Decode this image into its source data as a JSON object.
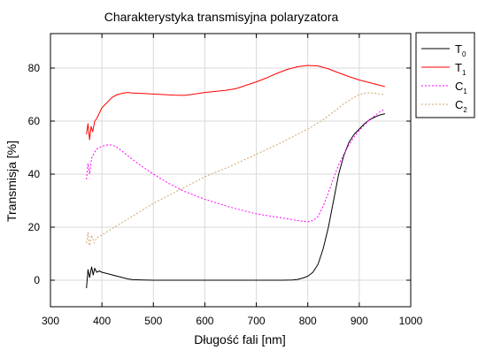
{
  "chart_data": {
    "type": "line",
    "title": "Charakterystyka transmisyjna polaryzatora",
    "xlabel": "Długość fali [nm]",
    "ylabel": "Transmisja [%]",
    "xlim": [
      300,
      1000
    ],
    "ylim": [
      -10,
      93
    ],
    "xticks": [
      300,
      400,
      500,
      600,
      700,
      800,
      900,
      1000
    ],
    "yticks": [
      0,
      20,
      40,
      60,
      80
    ],
    "grid": true,
    "legend_position": "right",
    "series": [
      {
        "name": "T0",
        "name_main": "T",
        "name_sub": "0",
        "color": "#000000",
        "dash": "solid",
        "x": [
          370,
          373,
          376,
          380,
          383,
          386,
          390,
          395,
          400,
          410,
          420,
          430,
          440,
          450,
          460,
          480,
          500,
          550,
          600,
          650,
          700,
          750,
          770,
          780,
          790,
          800,
          810,
          820,
          830,
          840,
          850,
          860,
          870,
          880,
          890,
          900,
          910,
          920,
          930,
          940,
          950
        ],
        "y": [
          -3,
          4,
          1,
          5,
          2,
          4.5,
          3,
          3.5,
          3,
          2.5,
          2,
          1.5,
          1,
          0.5,
          0.2,
          0.1,
          0,
          0,
          0,
          0,
          0,
          0,
          0.1,
          0.3,
          0.8,
          1.5,
          3,
          6,
          12,
          20,
          30,
          40,
          47,
          52,
          55,
          57,
          59,
          60.5,
          61.5,
          62.3,
          62.8
        ]
      },
      {
        "name": "T1",
        "name_main": "T",
        "name_sub": "1",
        "color": "#ff0000",
        "dash": "solid",
        "x": [
          370,
          373,
          376,
          379,
          382,
          386,
          390,
          395,
          400,
          410,
          420,
          430,
          440,
          450,
          460,
          480,
          500,
          520,
          540,
          560,
          580,
          600,
          620,
          640,
          660,
          680,
          700,
          720,
          740,
          760,
          780,
          800,
          820,
          840,
          860,
          880,
          900,
          920,
          940,
          950
        ],
        "y": [
          55,
          59,
          53,
          58,
          56,
          60,
          61,
          63,
          65,
          67,
          69,
          70,
          70.5,
          70.8,
          70.6,
          70.4,
          70.2,
          70,
          69.8,
          69.7,
          70.2,
          70.8,
          71.2,
          71.6,
          72.2,
          73.5,
          74.8,
          76.3,
          78,
          79.5,
          80.5,
          81,
          80.8,
          79.7,
          78.2,
          76.8,
          75.5,
          74.5,
          73.5,
          73
        ]
      },
      {
        "name": "C1",
        "name_main": "C",
        "name_sub": "1",
        "color": "#ff00ff",
        "dash": "2,2",
        "x": [
          370,
          373,
          376,
          380,
          385,
          390,
          400,
          410,
          420,
          430,
          440,
          450,
          470,
          500,
          530,
          560,
          600,
          650,
          700,
          750,
          780,
          800,
          810,
          820,
          830,
          840,
          850,
          860,
          870,
          880,
          890,
          900,
          910,
          920,
          930,
          940,
          950
        ],
        "y": [
          38,
          44,
          40,
          46,
          48,
          49.5,
          50.5,
          51,
          51,
          50,
          48.5,
          47,
          44,
          40,
          36.5,
          33.5,
          30.5,
          27.5,
          25,
          23.5,
          22.5,
          22,
          22.5,
          24,
          28,
          33,
          38.5,
          43.5,
          47.5,
          51,
          54,
          56.5,
          58.5,
          60.5,
          62,
          63.5,
          64.5
        ]
      },
      {
        "name": "C2",
        "name_main": "C",
        "name_sub": "2",
        "color": "#d2a56e",
        "dash": "2,2",
        "x": [
          370,
          373,
          376,
          380,
          385,
          390,
          400,
          420,
          450,
          500,
          550,
          600,
          650,
          700,
          750,
          800,
          830,
          850,
          870,
          890,
          900,
          910,
          920,
          930,
          940,
          950
        ],
        "y": [
          14,
          18,
          13,
          17,
          14,
          16,
          17,
          19.5,
          23,
          29,
          34,
          39,
          43,
          47.5,
          52,
          57,
          60.5,
          63.5,
          66.5,
          69,
          70,
          70.5,
          70.7,
          70.5,
          70.2,
          70
        ]
      }
    ]
  }
}
